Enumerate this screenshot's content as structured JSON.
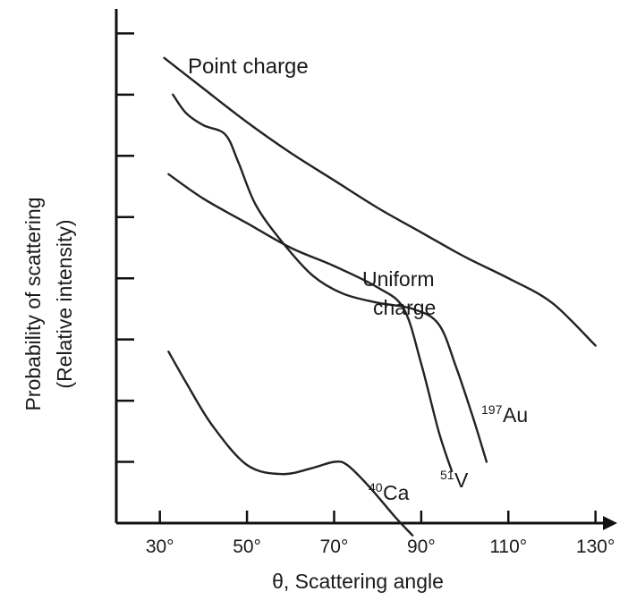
{
  "chart_data": {
    "type": "line",
    "title": "",
    "xlabel": "θ, Scattering angle",
    "ylabel_line1": "Probability of scattering",
    "ylabel_line2": "(Relative intensity)",
    "xlim": [
      20,
      135
    ],
    "ylim": [
      0,
      8.4
    ],
    "x_ticks": [
      30,
      50,
      70,
      90,
      110,
      130
    ],
    "x_tick_labels": [
      "30°",
      "50°",
      "70°",
      "90°",
      "110°",
      "130°"
    ],
    "y_ticks": [
      1,
      2,
      3,
      4,
      5,
      6,
      7,
      8
    ],
    "y_tick_labels": [],
    "grid": false,
    "series": [
      {
        "name": "Point charge",
        "label_lines": [
          "Point charge"
        ],
        "x": [
          31,
          40,
          50,
          60,
          70,
          80,
          90,
          100,
          110,
          120,
          130
        ],
        "y": [
          7.6,
          7.1,
          6.55,
          6.05,
          5.6,
          5.15,
          4.75,
          4.35,
          4.0,
          3.6,
          2.9
        ]
      },
      {
        "name": "Uniform charge",
        "label_lines": [
          "Uniform",
          "charge"
        ],
        "label_superscript": "",
        "x": [
          33,
          36,
          40,
          45,
          48,
          52,
          58,
          65,
          72,
          80,
          88,
          94,
          98,
          102,
          105
        ],
        "y": [
          7.0,
          6.7,
          6.5,
          6.35,
          5.9,
          5.2,
          4.6,
          4.05,
          3.75,
          3.6,
          3.5,
          3.25,
          2.55,
          1.7,
          1.0
        ]
      },
      {
        "name": "197Au",
        "label_lines": [
          "Au"
        ],
        "label_superscript": "197",
        "x": [
          32,
          40,
          50,
          60,
          70,
          80,
          86,
          90,
          94,
          97
        ],
        "y": [
          5.7,
          5.3,
          4.9,
          4.5,
          4.2,
          3.85,
          3.5,
          2.6,
          1.5,
          0.85
        ]
      },
      {
        "name": "51V",
        "label_lines": [
          "V"
        ],
        "label_superscript": "51",
        "x": [
          32,
          36,
          42,
          50,
          58,
          65,
          70,
          73,
          78,
          84,
          88
        ],
        "y": [
          2.8,
          2.3,
          1.6,
          0.95,
          0.8,
          0.9,
          1.0,
          0.95,
          0.6,
          0.1,
          -0.2
        ]
      },
      {
        "name": "40Ca",
        "label_lines": [
          "Ca"
        ],
        "label_superscript": "40",
        "x": [],
        "y": []
      }
    ]
  }
}
